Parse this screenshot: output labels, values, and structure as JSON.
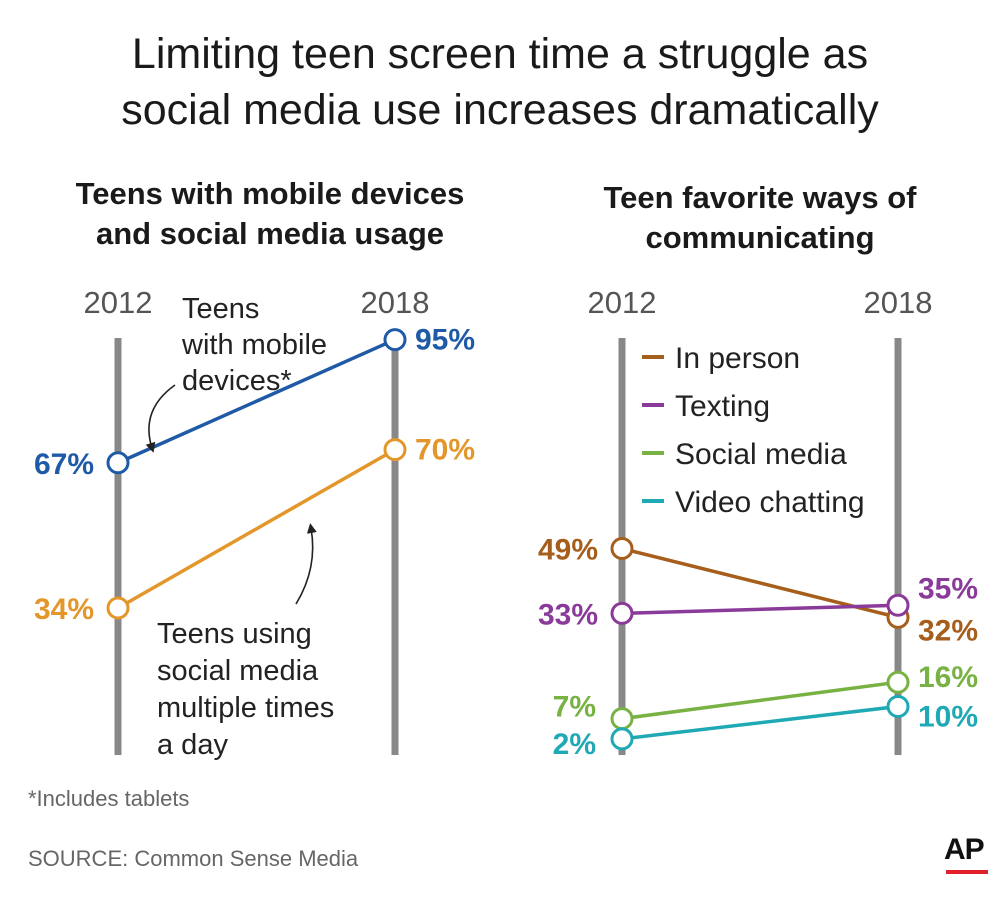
{
  "title_lines": [
    "Limiting teen screen time a struggle as",
    "social media use increases dramatically"
  ],
  "footnote": "*Includes tablets",
  "source": "SOURCE: Common Sense Media",
  "logo": "AP",
  "colors": {
    "mobile": "#1f5aa6",
    "social_usage": "#e3962a",
    "in_person": "#a65e1c",
    "texting": "#8a3a98",
    "social_media": "#78b243",
    "video_chatting": "#1fa9b4",
    "axis": "#888888",
    "brand_red": "#e11f2d"
  },
  "chart_data": [
    {
      "type": "line",
      "title": "Teens with mobile devices and social media usage",
      "subtitle_lines": [
        "Teens with mobile devices",
        "and social media usage"
      ],
      "x": [
        "2012",
        "2018"
      ],
      "ylim": [
        0,
        100
      ],
      "series": [
        {
          "name": "Teens with mobile devices*",
          "name_lines": [
            "Teens",
            "with mobile",
            "devices*"
          ],
          "values": [
            67,
            95
          ],
          "labels": [
            "67%",
            "95%"
          ],
          "color_key": "mobile"
        },
        {
          "name": "Teens using social media multiple times a day",
          "name_lines": [
            "Teens using",
            "social media",
            "multiple times",
            "a day"
          ],
          "values": [
            34,
            70
          ],
          "labels": [
            "34%",
            "70%"
          ],
          "color_key": "social_usage"
        }
      ]
    },
    {
      "type": "line",
      "title": "Teen favorite ways of communicating",
      "subtitle_lines": [
        "Teen favorite ways of",
        "communicating"
      ],
      "x": [
        "2012",
        "2018"
      ],
      "ylim": [
        0,
        100
      ],
      "legend": [
        "In person",
        "Texting",
        "Social media",
        "Video chatting"
      ],
      "series": [
        {
          "name": "In person",
          "values": [
            49,
            32
          ],
          "labels": [
            "49%",
            "32%"
          ],
          "color_key": "in_person"
        },
        {
          "name": "Texting",
          "values": [
            33,
            35
          ],
          "labels": [
            "33%",
            "35%"
          ],
          "color_key": "texting"
        },
        {
          "name": "Social media",
          "values": [
            7,
            16
          ],
          "labels": [
            "7%",
            "16%"
          ],
          "color_key": "social_media"
        },
        {
          "name": "Video chatting",
          "values": [
            2,
            10
          ],
          "labels": [
            "2%",
            "10%"
          ],
          "color_key": "video_chatting"
        }
      ]
    }
  ]
}
